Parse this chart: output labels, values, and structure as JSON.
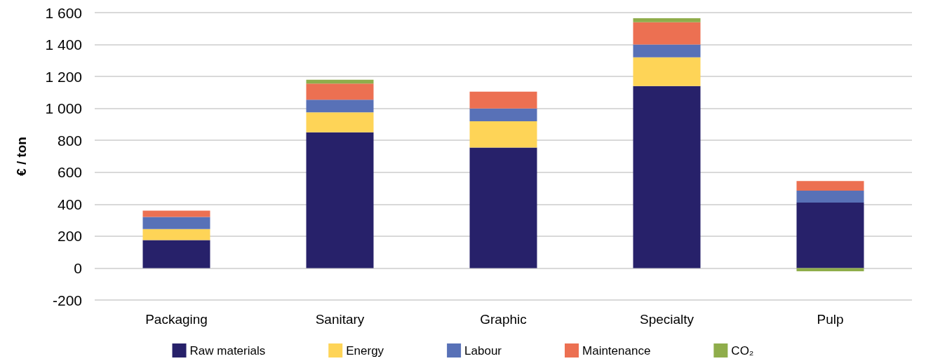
{
  "chart_data": {
    "type": "bar",
    "stacked": true,
    "ylabel": "€ / ton",
    "categories": [
      "Packaging",
      "Sanitary",
      "Graphic",
      "Specialty",
      "Pulp"
    ],
    "series": [
      {
        "name": "Raw materials",
        "color": "#27216a",
        "values": [
          175,
          850,
          755,
          1140,
          410
        ]
      },
      {
        "name": "Energy",
        "color": "#fed457",
        "values": [
          70,
          125,
          165,
          180,
          0
        ]
      },
      {
        "name": "Labour",
        "color": "#5871b7",
        "values": [
          75,
          80,
          80,
          80,
          75
        ]
      },
      {
        "name": "Maintenance",
        "color": "#ec7052",
        "values": [
          40,
          100,
          105,
          140,
          60
        ]
      },
      {
        "name": "CO₂",
        "color": "#8fad4b",
        "values": [
          null,
          25,
          null,
          25,
          -20
        ]
      }
    ],
    "ylim": [
      -200,
      1600
    ],
    "yticks": [
      -200,
      0,
      200,
      400,
      600,
      800,
      {
        "value": 1000,
        "label": "1 000"
      },
      {
        "value": 1200,
        "label": "1 200"
      },
      {
        "value": 1400,
        "label": "1 400"
      },
      {
        "value": 1600,
        "label": "1 600"
      }
    ],
    "grid": "y",
    "legend": "bottom"
  }
}
